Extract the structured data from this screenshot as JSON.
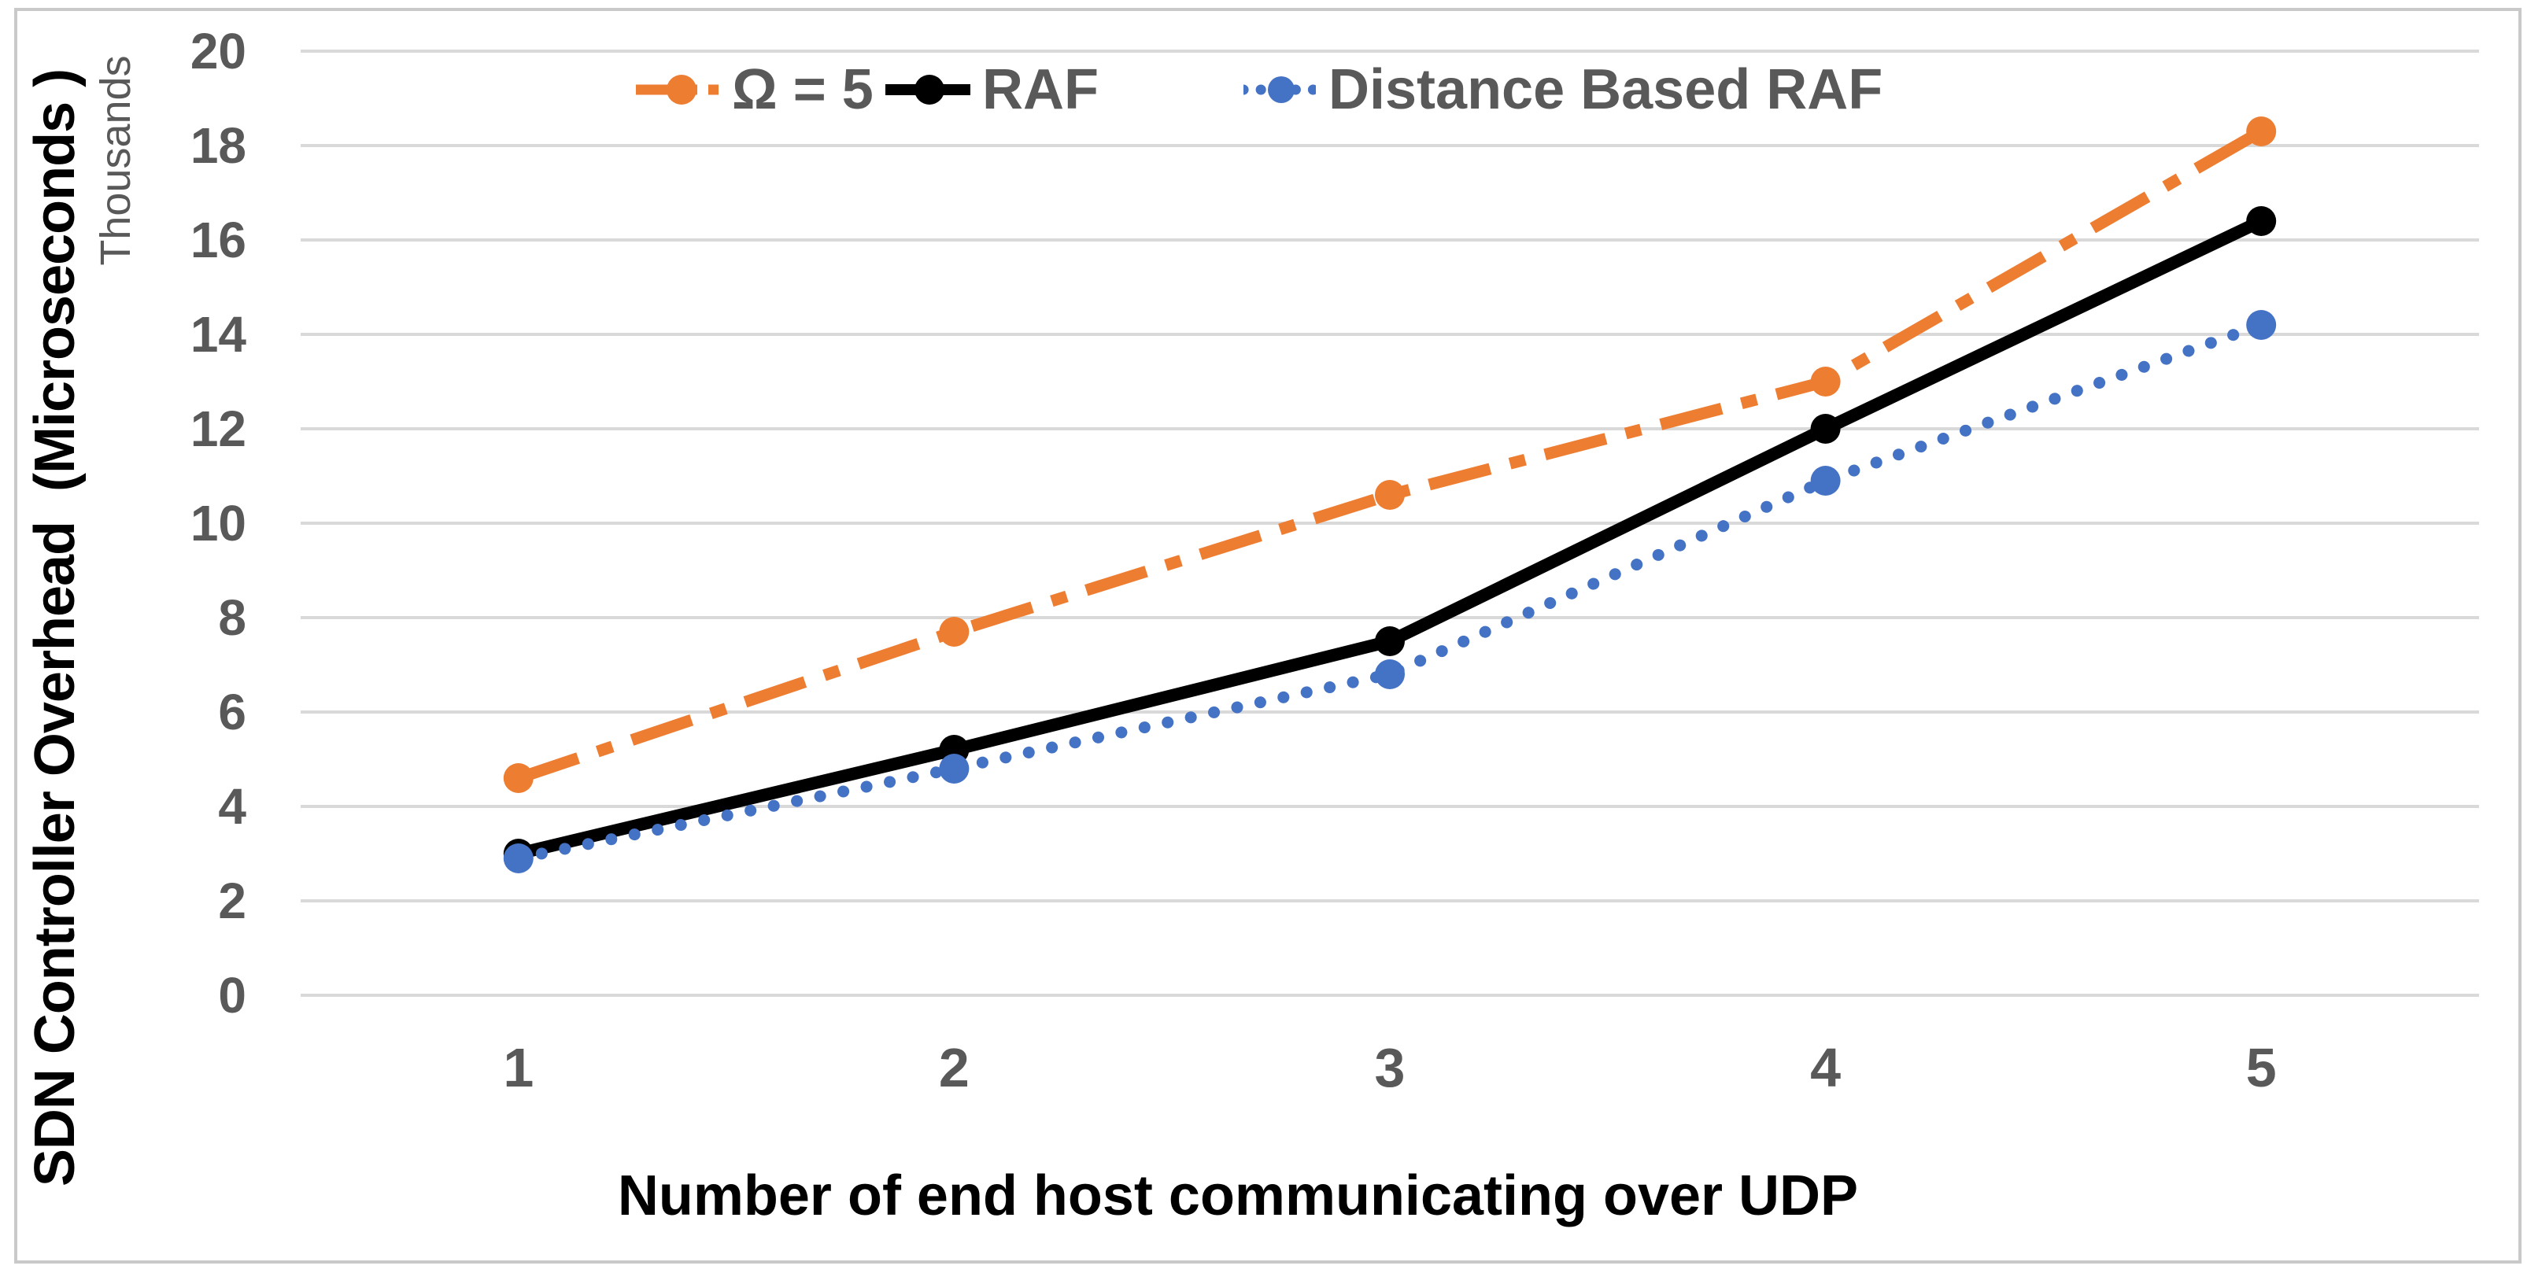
{
  "chart_data": {
    "type": "line",
    "categories": [
      "1",
      "2",
      "3",
      "4",
      "5"
    ],
    "series": [
      {
        "name": "Ω = 5",
        "values": [
          4.6,
          7.7,
          10.6,
          13.0,
          18.3
        ],
        "color": "#ED7D31",
        "line_style": "long-dash-dot",
        "marker": "circle"
      },
      {
        "name": "RAF",
        "values": [
          3.0,
          5.2,
          7.5,
          12.0,
          16.4
        ],
        "color": "#000000",
        "line_style": "solid",
        "marker": "circle"
      },
      {
        "name": "Distance Based RAF",
        "values": [
          2.9,
          4.8,
          6.8,
          10.9,
          14.2
        ],
        "color": "#4472C4",
        "line_style": "round-dot",
        "marker": "circle"
      }
    ],
    "xlabel": "Number of end host communicating over UDP",
    "ylabel": "SDN Controller Overhead  (Microseconds )",
    "ylabel_secondary": "Thousands",
    "ylim": [
      0,
      20
    ],
    "yticks": [
      0,
      2,
      4,
      6,
      8,
      10,
      12,
      14,
      16,
      18,
      20
    ],
    "units": "thousands",
    "grid": "horizontal-only",
    "legend_position": "top-center"
  },
  "colors": {
    "axis_text": "#595959",
    "gridline": "#D9D9D9",
    "axis_title": "#000000",
    "frame_border": "#C9C9C9",
    "background": "#FFFFFF"
  }
}
